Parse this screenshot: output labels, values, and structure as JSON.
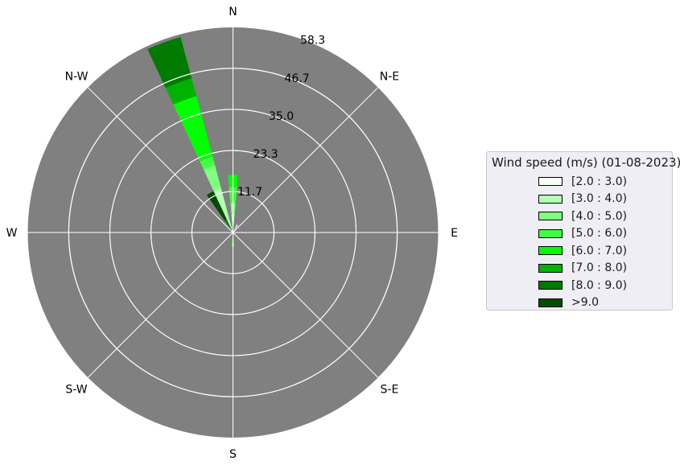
{
  "chart_data": {
    "type": "windrose",
    "title": "",
    "directions": [
      "N",
      "N-E",
      "E",
      "S-E",
      "S",
      "S-W",
      "W",
      "N-W"
    ],
    "radial_ticks": [
      "11.7",
      "23.3",
      "35.0",
      "46.7",
      "58.3"
    ],
    "rmax": 58.3,
    "legend": {
      "title": "Wind speed (m/s) (01-08-2023)",
      "placement": "right",
      "bins": [
        {
          "label": "[2.0 : 3.0)",
          "color": "#f2fff2"
        },
        {
          "label": "[3.0 : 4.0)",
          "color": "#b3ffb3"
        },
        {
          "label": "[4.0 : 5.0)",
          "color": "#80ff80"
        },
        {
          "label": "[5.0 : 6.0)",
          "color": "#40ff40"
        },
        {
          "label": "[6.0 : 7.0)",
          "color": "#00ff00"
        },
        {
          "label": "[7.0 : 8.0)",
          "color": "#00b300"
        },
        {
          "label": "[8.0 : 9.0)",
          "color": "#007a00"
        },
        {
          "label": ">9.0",
          "color": "#004d00"
        }
      ]
    },
    "sectors": [
      {
        "direction_deg": 0,
        "width_deg": 10,
        "cumulative": [
          2.1,
          5.1,
          8.4,
          13.0,
          16.4,
          16.4,
          16.4,
          16.4
        ]
      },
      {
        "direction_deg": 30,
        "width_deg": 10,
        "cumulative": [
          2.5,
          2.5,
          2.5,
          2.5,
          2.5,
          2.5,
          2.5,
          2.5
        ]
      },
      {
        "direction_deg": 180,
        "width_deg": 10,
        "cumulative": [
          0.4,
          0.4,
          2.5,
          4.0,
          4.0,
          4.0,
          4.0,
          4.0
        ]
      },
      {
        "direction_deg": 330,
        "width_deg": 10,
        "cumulative": [
          0,
          0,
          0,
          0,
          0,
          0,
          4.2,
          13.0
        ]
      },
      {
        "direction_deg": 340,
        "width_deg": 10,
        "cumulative": [
          1.7,
          13.0,
          19.8,
          22.3,
          40.1,
          45.3,
          57.5,
          57.5
        ]
      }
    ],
    "grid": true,
    "background": "#808080"
  }
}
